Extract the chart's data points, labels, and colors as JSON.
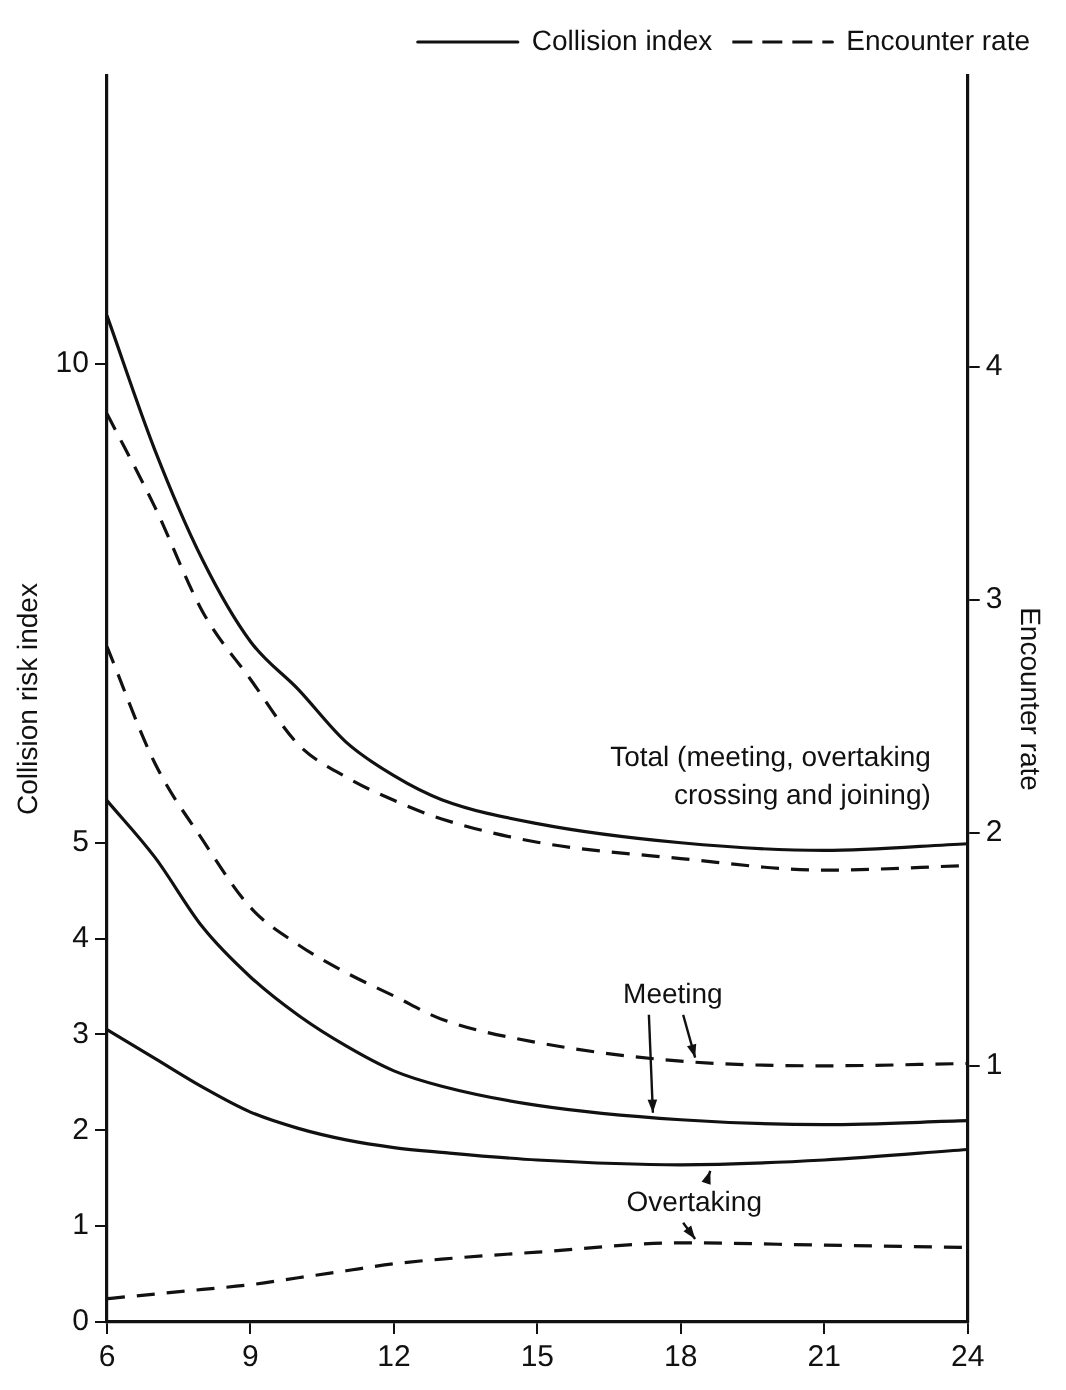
{
  "chart_data": {
    "type": "line",
    "xlim": [
      6,
      24
    ],
    "xticks": [
      6,
      9,
      12,
      15,
      18,
      21,
      24
    ],
    "ylim": [
      0,
      13
    ],
    "yticks": [
      0,
      1,
      2,
      3,
      4,
      5,
      10
    ],
    "y2lim": [
      -0.1,
      5.25
    ],
    "y2ticks": [
      1,
      2,
      3,
      4
    ],
    "ylabel": "Collision risk index",
    "y2label": "Encounter rate",
    "grid": false,
    "legend": "top right",
    "marker": "none",
    "x": [
      6,
      7,
      8,
      9,
      10,
      11,
      12,
      13,
      15,
      18,
      21,
      24
    ],
    "series": [
      {
        "name": "Collision index",
        "color": "#111111",
        "line_style": "solid",
        "values": [
          10.5,
          9.1,
          7.95,
          7.1,
          6.6,
          6.05,
          5.7,
          5.45,
          5.2,
          5.0,
          4.92,
          4.99
        ]
      },
      {
        "name": "Encounter rate",
        "color": "#111111",
        "line_style": "dashed",
        "axis": "y2",
        "values": [
          3.8,
          3.4,
          2.95,
          2.66,
          2.38,
          2.24,
          2.14,
          2.06,
          1.96,
          1.89,
          1.84,
          1.86
        ]
      },
      {
        "color": "#111111",
        "line_style": "solid",
        "values": [
          5.44,
          4.85,
          4.12,
          3.6,
          3.2,
          2.88,
          2.62,
          2.46,
          2.26,
          2.11,
          2.06,
          2.1
        ]
      },
      {
        "color": "#111111",
        "line_style": "dashed",
        "axis": "y2",
        "values": [
          2.8,
          2.3,
          1.97,
          1.68,
          1.52,
          1.4,
          1.3,
          1.2,
          1.1,
          1.02,
          1.0,
          1.01
        ]
      },
      {
        "color": "#111111",
        "line_style": "solid",
        "values": [
          3.05,
          2.75,
          2.45,
          2.19,
          2.02,
          1.9,
          1.82,
          1.77,
          1.69,
          1.64,
          1.69,
          1.8
        ]
      },
      {
        "color": "#111111",
        "line_style": "dashed",
        "axis": "y2",
        "values": [
          0.0,
          0.02,
          0.04,
          0.06,
          0.09,
          0.12,
          0.15,
          0.17,
          0.2,
          0.24,
          0.23,
          0.22
        ]
      }
    ],
    "annotations": [
      {
        "text": "Total (meeting, overtaking\ncrossing and joining)",
        "x": 18,
        "y": 5.0
      },
      {
        "text": "Meeting",
        "x": 17.5,
        "y": 2.12
      },
      {
        "text": "Overtaking",
        "x": 18.7,
        "y": 1.64
      }
    ]
  }
}
